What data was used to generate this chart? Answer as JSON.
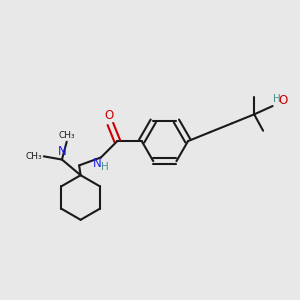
{
  "bg_color": "#e8e8e8",
  "bond_color": "#1a1a1a",
  "n_color": "#2020ee",
  "o_color": "#cc0000",
  "oh_color": "#4a9090",
  "figsize": [
    3.0,
    3.0
  ],
  "dpi": 100,
  "xlim": [
    0,
    10
  ],
  "ylim": [
    0,
    10
  ],
  "lw": 1.5,
  "fs": 8.5,
  "fsh": 7.5
}
